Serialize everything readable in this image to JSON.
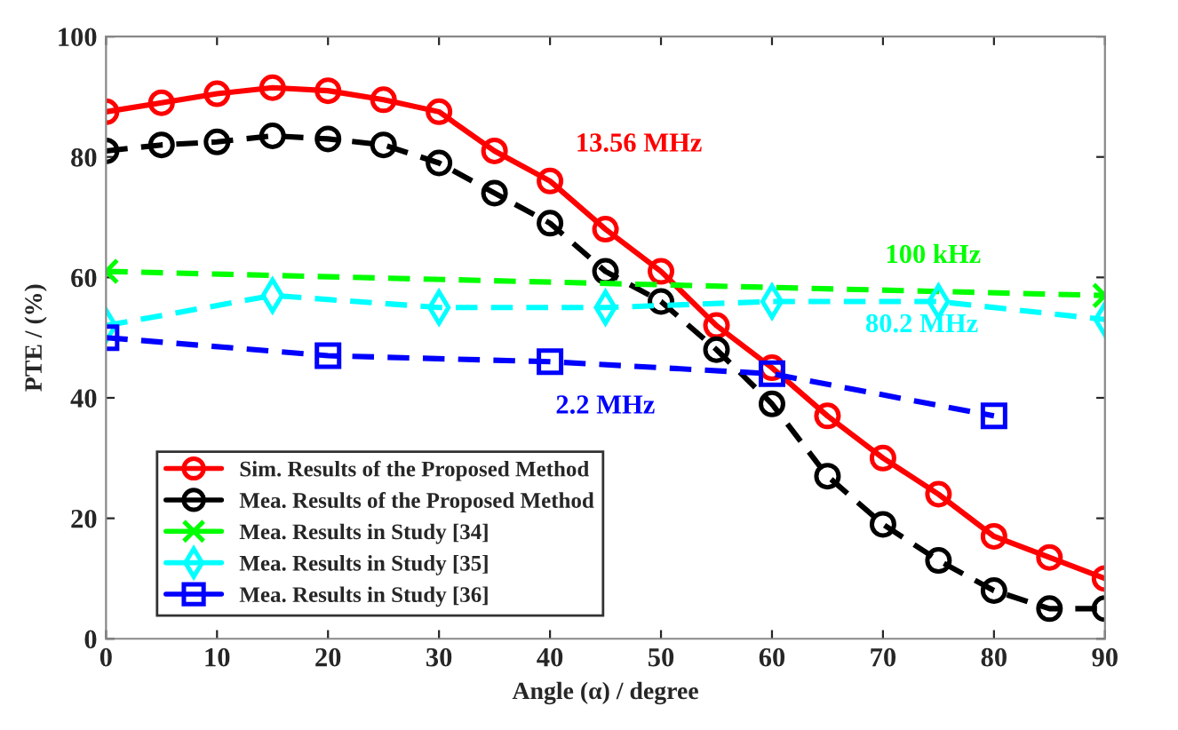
{
  "chart_data": {
    "type": "line",
    "xlabel": "Angle (α) / degree",
    "ylabel": "PTE / (%)",
    "xlim": [
      0,
      90
    ],
    "xticks": [
      0,
      10,
      20,
      30,
      40,
      50,
      60,
      70,
      80,
      90
    ],
    "ylim": [
      0,
      100
    ],
    "yticks": [
      0,
      20,
      40,
      60,
      80,
      100
    ],
    "grid": false,
    "legend": "bottom left",
    "series": [
      {
        "name": "Sim. Results of the Proposed Method",
        "color": "#ff0000",
        "marker": "circle",
        "line_style": "solid",
        "x": [
          0,
          5,
          10,
          15,
          20,
          25,
          30,
          35,
          40,
          45,
          50,
          55,
          60,
          65,
          70,
          75,
          80,
          85,
          90
        ],
        "values": [
          87.5,
          89,
          90.5,
          91.5,
          91,
          89.5,
          87.5,
          81,
          76,
          68,
          61,
          52,
          45,
          37,
          30,
          24,
          17,
          13.5,
          10
        ]
      },
      {
        "name": "Mea. Results of the Proposed Method",
        "color": "#000000",
        "marker": "circle",
        "line_style": "dashed",
        "x": [
          0,
          5,
          10,
          15,
          20,
          25,
          30,
          35,
          40,
          45,
          50,
          55,
          60,
          65,
          70,
          75,
          80,
          85,
          90
        ],
        "values": [
          81,
          82,
          82.5,
          83.5,
          83,
          82,
          79,
          74,
          69,
          61,
          56,
          48,
          39,
          27,
          19,
          13,
          8,
          5,
          5
        ]
      },
      {
        "name": "Mea. Results in Study [34]",
        "color": "#00ff00",
        "marker": "cross",
        "line_style": "dashed",
        "x": [
          0,
          90
        ],
        "values": [
          61,
          57
        ]
      },
      {
        "name": "Mea. Results in Study [35]",
        "color": "#00ffff",
        "marker": "diamond",
        "line_style": "dashed",
        "x": [
          0,
          15,
          30,
          45,
          60,
          75,
          90
        ],
        "values": [
          52,
          57,
          55,
          55,
          56,
          56,
          53
        ]
      },
      {
        "name": "Mea. Results in Study [36]",
        "color": "#0000ff",
        "marker": "square",
        "line_style": "dashed",
        "x": [
          0,
          20,
          40,
          60,
          80
        ],
        "values": [
          50,
          47,
          46,
          44,
          37
        ]
      }
    ],
    "annotations": [
      "13.56 MHz",
      "100 kHz",
      "80.2 MHz",
      "2.2 MHz"
    ]
  }
}
